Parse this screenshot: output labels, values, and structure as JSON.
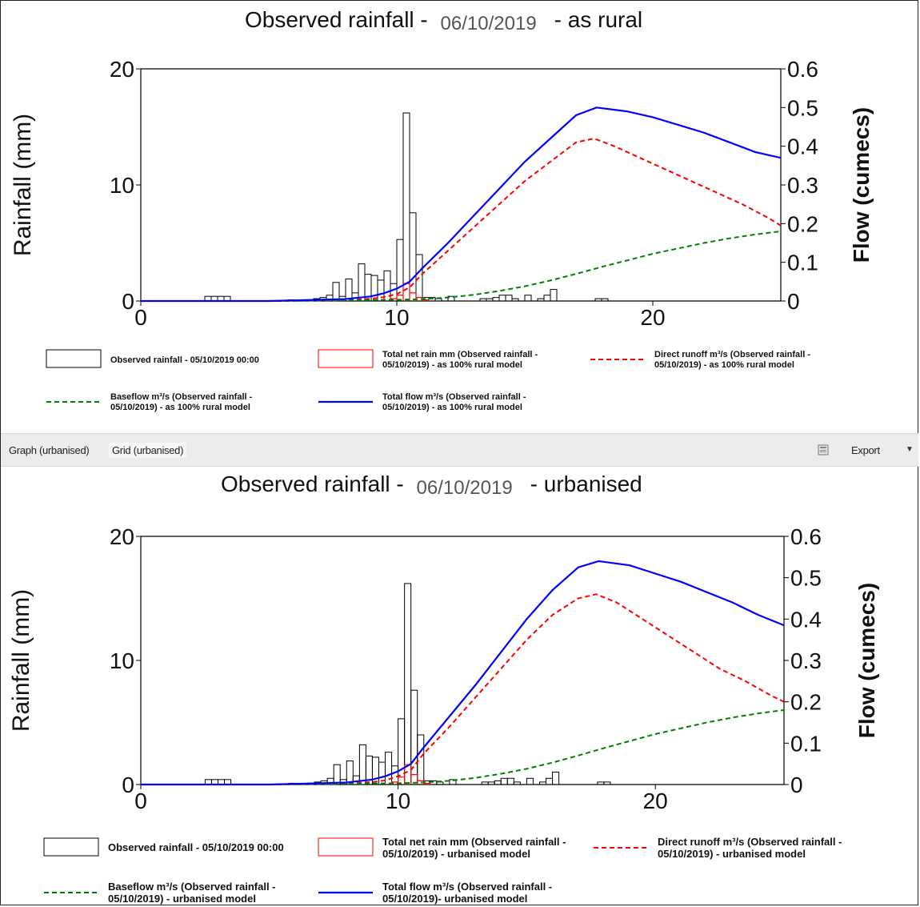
{
  "tabs": {
    "graph": "Graph (urbanised)",
    "grid": "Grid (urbanised)",
    "export": "Export",
    "export_icon": "export-icon"
  },
  "colors": {
    "rainfall": "#000000",
    "net_rain": "#ff0000",
    "direct_runoff": "#ff0000",
    "baseflow": "#008000",
    "total_flow": "#0000ff"
  },
  "charts": {
    "top": {
      "title_prefix": "Observed rainfall - ",
      "title_date": "06/10/2019",
      "title_suffix": "- as rural",
      "legend": {
        "rainfall": "Observed rainfall - 05/10/2019 00:00",
        "net_rain": [
          "Total net rain mm (Observed rainfall -",
          "05/10/2019) - as 100% rural model"
        ],
        "direct_runoff": [
          "Direct runoff m³/s (Observed rainfall -",
          "05/10/2019) - as 100% rural model"
        ],
        "baseflow": [
          "Baseflow m³/s (Observed rainfall -",
          "05/10/2019) - as 100% rural model"
        ],
        "total_flow": [
          "Total flow m³/s (Observed rainfall -",
          "05/10/2019) - as 100% rural model"
        ]
      }
    },
    "bottom": {
      "title_prefix": "Observed rainfall - ",
      "title_date": "06/10/2019",
      "title_suffix": "- urbanised",
      "legend": {
        "rainfall": "Observed rainfall - 05/10/2019 00:00",
        "net_rain": [
          "Total net rain mm (Observed rainfall -",
          "05/10/2019) - urbanised model"
        ],
        "direct_runoff": [
          "Direct runoff m³/s (Observed rainfall -",
          "05/10/2019) - urbanised model"
        ],
        "baseflow": [
          "Baseflow m³/s (Observed rainfall -",
          "05/10/2019) - urbanised model"
        ],
        "total_flow": [
          "Total flow m³/s (Observed rainfall -",
          "05/10/2019)- urbanised model"
        ]
      }
    }
  },
  "chart_data": [
    {
      "type": "bar+line",
      "title": "Observed rainfall - 06/10/2019 - as rural",
      "ylabel": "Rainfall (mm)",
      "y2label": "Flow (cumecs)",
      "xlim": [
        0,
        25
      ],
      "ylim": [
        0,
        20
      ],
      "y2lim": [
        0,
        0.6
      ],
      "xticks": [
        "0",
        "10",
        "20"
      ],
      "yticks": [
        "0",
        "10",
        "20"
      ],
      "y2ticks": [
        "0",
        "0.1",
        "0.2",
        "0.3",
        "0.4",
        "0.5",
        "0.6"
      ],
      "grid": false,
      "rainfall_bars": {
        "name": "Observed rainfall - 05/10/2019 00:00",
        "bin_width": 0.25,
        "x": [
          2.5,
          2.75,
          3.0,
          3.25,
          5.75,
          6.75,
          7.0,
          7.25,
          7.5,
          7.75,
          8.0,
          8.25,
          8.5,
          8.75,
          9.0,
          9.25,
          9.5,
          9.75,
          10.0,
          10.25,
          10.5,
          10.75,
          11.0,
          11.25,
          11.5,
          12.0,
          13.25,
          13.5,
          13.75,
          14.0,
          14.25,
          14.5,
          15.0,
          15.5,
          15.75,
          16.0,
          17.75,
          18.0
        ],
        "values": [
          0.4,
          0.4,
          0.4,
          0.4,
          0.1,
          0.2,
          0.3,
          0.5,
          1.6,
          0.4,
          1.9,
          0.7,
          3.2,
          2.3,
          2.2,
          1.8,
          2.6,
          1.5,
          5.3,
          16.2,
          7.6,
          4.0,
          0.3,
          0.3,
          0.2,
          0.4,
          0.2,
          0.2,
          0.3,
          0.5,
          0.5,
          0.2,
          0.5,
          0.2,
          0.5,
          1.0,
          0.2,
          0.2
        ]
      },
      "series": [
        {
          "name": "Total net rain mm (Observed rainfall - 05/10/2019) - as 100% rural model",
          "axis": "left",
          "x": [
            9.75,
            10.0,
            10.25,
            10.5,
            10.75,
            11.0
          ],
          "values": [
            0.2,
            0.5,
            1.5,
            0.7,
            0.3,
            0.1
          ]
        },
        {
          "name": "Direct runoff m³/s (Observed rainfall - 05/10/2019) - as 100% rural model",
          "axis": "right",
          "x": [
            0,
            5,
            8,
            9,
            9.5,
            10,
            10.5,
            11,
            12,
            13,
            14,
            15,
            16,
            17,
            17.7,
            18.5,
            19.5,
            20.5,
            21.5,
            22.5,
            23.5,
            24.5,
            25
          ],
          "values": [
            0,
            0,
            0.002,
            0.006,
            0.01,
            0.018,
            0.035,
            0.07,
            0.13,
            0.19,
            0.25,
            0.31,
            0.36,
            0.41,
            0.42,
            0.4,
            0.37,
            0.34,
            0.31,
            0.28,
            0.25,
            0.215,
            0.195
          ]
        },
        {
          "name": "Baseflow m³/s (Observed rainfall - 05/10/2019) - as 100% rural model",
          "axis": "right",
          "x": [
            0,
            5,
            8,
            10,
            11,
            12,
            13,
            14,
            15,
            16,
            17,
            18,
            19,
            20,
            21,
            22,
            23,
            24,
            25
          ],
          "values": [
            0,
            0,
            0.002,
            0.003,
            0.005,
            0.009,
            0.016,
            0.026,
            0.038,
            0.053,
            0.07,
            0.088,
            0.105,
            0.122,
            0.136,
            0.15,
            0.162,
            0.172,
            0.18
          ]
        },
        {
          "name": "Total flow m³/s (Observed rainfall - 05/10/2019) - as 100% rural model",
          "axis": "right",
          "x": [
            0,
            5,
            8,
            9,
            9.5,
            10,
            10.5,
            11,
            12,
            13,
            14,
            15,
            16,
            17,
            17.8,
            19,
            20,
            21,
            22,
            23,
            24,
            25
          ],
          "values": [
            0,
            0,
            0.005,
            0.012,
            0.02,
            0.032,
            0.05,
            0.085,
            0.15,
            0.22,
            0.29,
            0.36,
            0.42,
            0.48,
            0.5,
            0.49,
            0.475,
            0.455,
            0.435,
            0.41,
            0.385,
            0.37
          ]
        }
      ]
    },
    {
      "type": "bar+line",
      "title": "Observed rainfall - 06/10/2019 - urbanised",
      "ylabel": "Rainfall (mm)",
      "y2label": "Flow (cumecs)",
      "xlim": [
        0,
        25
      ],
      "ylim": [
        0,
        20
      ],
      "y2lim": [
        0,
        0.6
      ],
      "xticks": [
        "0",
        "10",
        "20"
      ],
      "yticks": [
        "0",
        "10",
        "20"
      ],
      "y2ticks": [
        "0",
        "0.1",
        "0.2",
        "0.3",
        "0.4",
        "0.5",
        "0.6"
      ],
      "grid": false,
      "rainfall_bars": {
        "name": "Observed rainfall - 05/10/2019 00:00",
        "bin_width": 0.25,
        "x": [
          2.5,
          2.75,
          3.0,
          3.25,
          5.75,
          6.75,
          7.0,
          7.25,
          7.5,
          7.75,
          8.0,
          8.25,
          8.5,
          8.75,
          9.0,
          9.25,
          9.5,
          9.75,
          10.0,
          10.25,
          10.5,
          10.75,
          11.0,
          11.25,
          11.5,
          12.0,
          13.25,
          13.5,
          13.75,
          14.0,
          14.25,
          14.5,
          15.0,
          15.5,
          15.75,
          16.0,
          17.75,
          18.0
        ],
        "values": [
          0.4,
          0.4,
          0.4,
          0.4,
          0.1,
          0.2,
          0.3,
          0.5,
          1.6,
          0.4,
          1.9,
          0.7,
          3.2,
          2.3,
          2.2,
          1.8,
          2.6,
          1.5,
          5.3,
          16.2,
          7.6,
          4.0,
          0.3,
          0.3,
          0.2,
          0.4,
          0.2,
          0.2,
          0.3,
          0.5,
          0.5,
          0.2,
          0.5,
          0.2,
          0.5,
          1.0,
          0.2,
          0.2
        ]
      },
      "series": [
        {
          "name": "Total net rain mm (Observed rainfall - 05/10/2019) - urbanised model",
          "axis": "left",
          "x": [
            9.75,
            10.0,
            10.25,
            10.5,
            10.75,
            11.0
          ],
          "values": [
            0.2,
            0.6,
            1.6,
            0.8,
            0.3,
            0.1
          ]
        },
        {
          "name": "Direct runoff m³/s (Observed rainfall - 05/10/2019) - urbanised model",
          "axis": "right",
          "x": [
            0,
            5,
            8,
            9,
            9.5,
            10,
            10.5,
            11,
            12,
            13,
            14,
            15,
            16,
            17,
            17.7,
            18.5,
            19.5,
            20.5,
            21.5,
            22.5,
            23.5,
            24.5,
            25
          ],
          "values": [
            0,
            0,
            0.002,
            0.006,
            0.01,
            0.02,
            0.035,
            0.075,
            0.14,
            0.21,
            0.28,
            0.35,
            0.41,
            0.45,
            0.46,
            0.44,
            0.4,
            0.36,
            0.32,
            0.28,
            0.25,
            0.215,
            0.2
          ]
        },
        {
          "name": "Baseflow m³/s (Observed rainfall - 05/10/2019) - urbanised model",
          "axis": "right",
          "x": [
            0,
            5,
            8,
            10,
            11,
            12,
            13,
            14,
            15,
            16,
            17,
            18,
            19,
            20,
            21,
            22,
            23,
            24,
            25
          ],
          "values": [
            0,
            0,
            0.002,
            0.003,
            0.005,
            0.009,
            0.016,
            0.026,
            0.038,
            0.053,
            0.07,
            0.088,
            0.105,
            0.122,
            0.136,
            0.15,
            0.162,
            0.172,
            0.18
          ]
        },
        {
          "name": "Total flow m³/s (Observed rainfall - 05/10/2019)- urbanised model",
          "axis": "right",
          "x": [
            0,
            5,
            8,
            9,
            9.5,
            10,
            10.5,
            11,
            12,
            13,
            14,
            15,
            16,
            17,
            17.8,
            19,
            20,
            21,
            22,
            23,
            24,
            25
          ],
          "values": [
            0,
            0,
            0.005,
            0.012,
            0.02,
            0.032,
            0.05,
            0.09,
            0.165,
            0.24,
            0.32,
            0.4,
            0.47,
            0.525,
            0.54,
            0.53,
            0.51,
            0.49,
            0.465,
            0.44,
            0.41,
            0.385
          ]
        }
      ]
    }
  ]
}
